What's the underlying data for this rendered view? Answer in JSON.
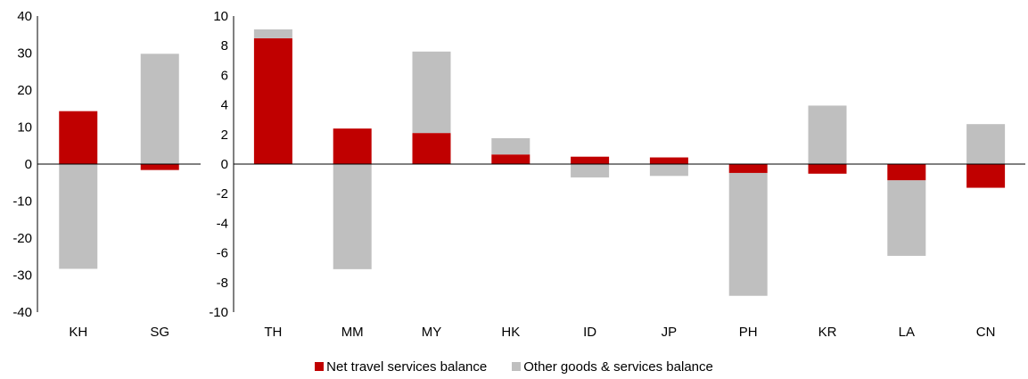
{
  "colors": {
    "net_travel": "#c00000",
    "other": "#bfbfbf"
  },
  "legend": {
    "items": [
      {
        "label": "Net travel services balance",
        "color": "#c00000"
      },
      {
        "label": "Other goods & services balance",
        "color": "#bfbfbf"
      }
    ]
  },
  "chart_data": [
    {
      "type": "bar",
      "stacked": true,
      "categories": [
        "KH",
        "SG"
      ],
      "series": [
        {
          "name": "Net travel services balance",
          "values": [
            14.3,
            -1.6
          ]
        },
        {
          "name": "Other goods & services balance",
          "values": [
            -28.3,
            29.8
          ]
        }
      ],
      "ylim": [
        -40,
        40
      ],
      "yticks": [
        40,
        30,
        20,
        10,
        0,
        -10,
        -20,
        -30,
        -40
      ],
      "tick_labels": [
        "40",
        "30",
        "20",
        "10",
        "0",
        "-10",
        "-20",
        "-30",
        "-40"
      ],
      "legend": "bottom",
      "grid": false
    },
    {
      "type": "bar",
      "stacked": true,
      "categories": [
        "TH",
        "MM",
        "MY",
        "HK",
        "ID",
        "JP",
        "PH",
        "KR",
        "LA",
        "CN"
      ],
      "series": [
        {
          "name": "Net travel services balance",
          "values": [
            8.5,
            2.4,
            2.1,
            0.65,
            0.5,
            0.45,
            -0.6,
            -0.65,
            -1.1,
            -1.6
          ]
        },
        {
          "name": "Other goods & services balance",
          "values": [
            0.6,
            -7.1,
            5.5,
            1.1,
            -0.9,
            -0.8,
            -8.3,
            3.95,
            -5.1,
            2.7
          ]
        }
      ],
      "ylim": [
        -10,
        10
      ],
      "yticks": [
        10,
        8,
        6,
        4,
        2,
        0,
        -2,
        -4,
        -6,
        -8,
        -10
      ],
      "tick_labels": [
        "10",
        "8",
        "6",
        "4",
        "2",
        "0",
        "-2",
        "-4",
        "-6",
        "-8",
        "-10"
      ],
      "legend": "bottom",
      "grid": false
    }
  ]
}
